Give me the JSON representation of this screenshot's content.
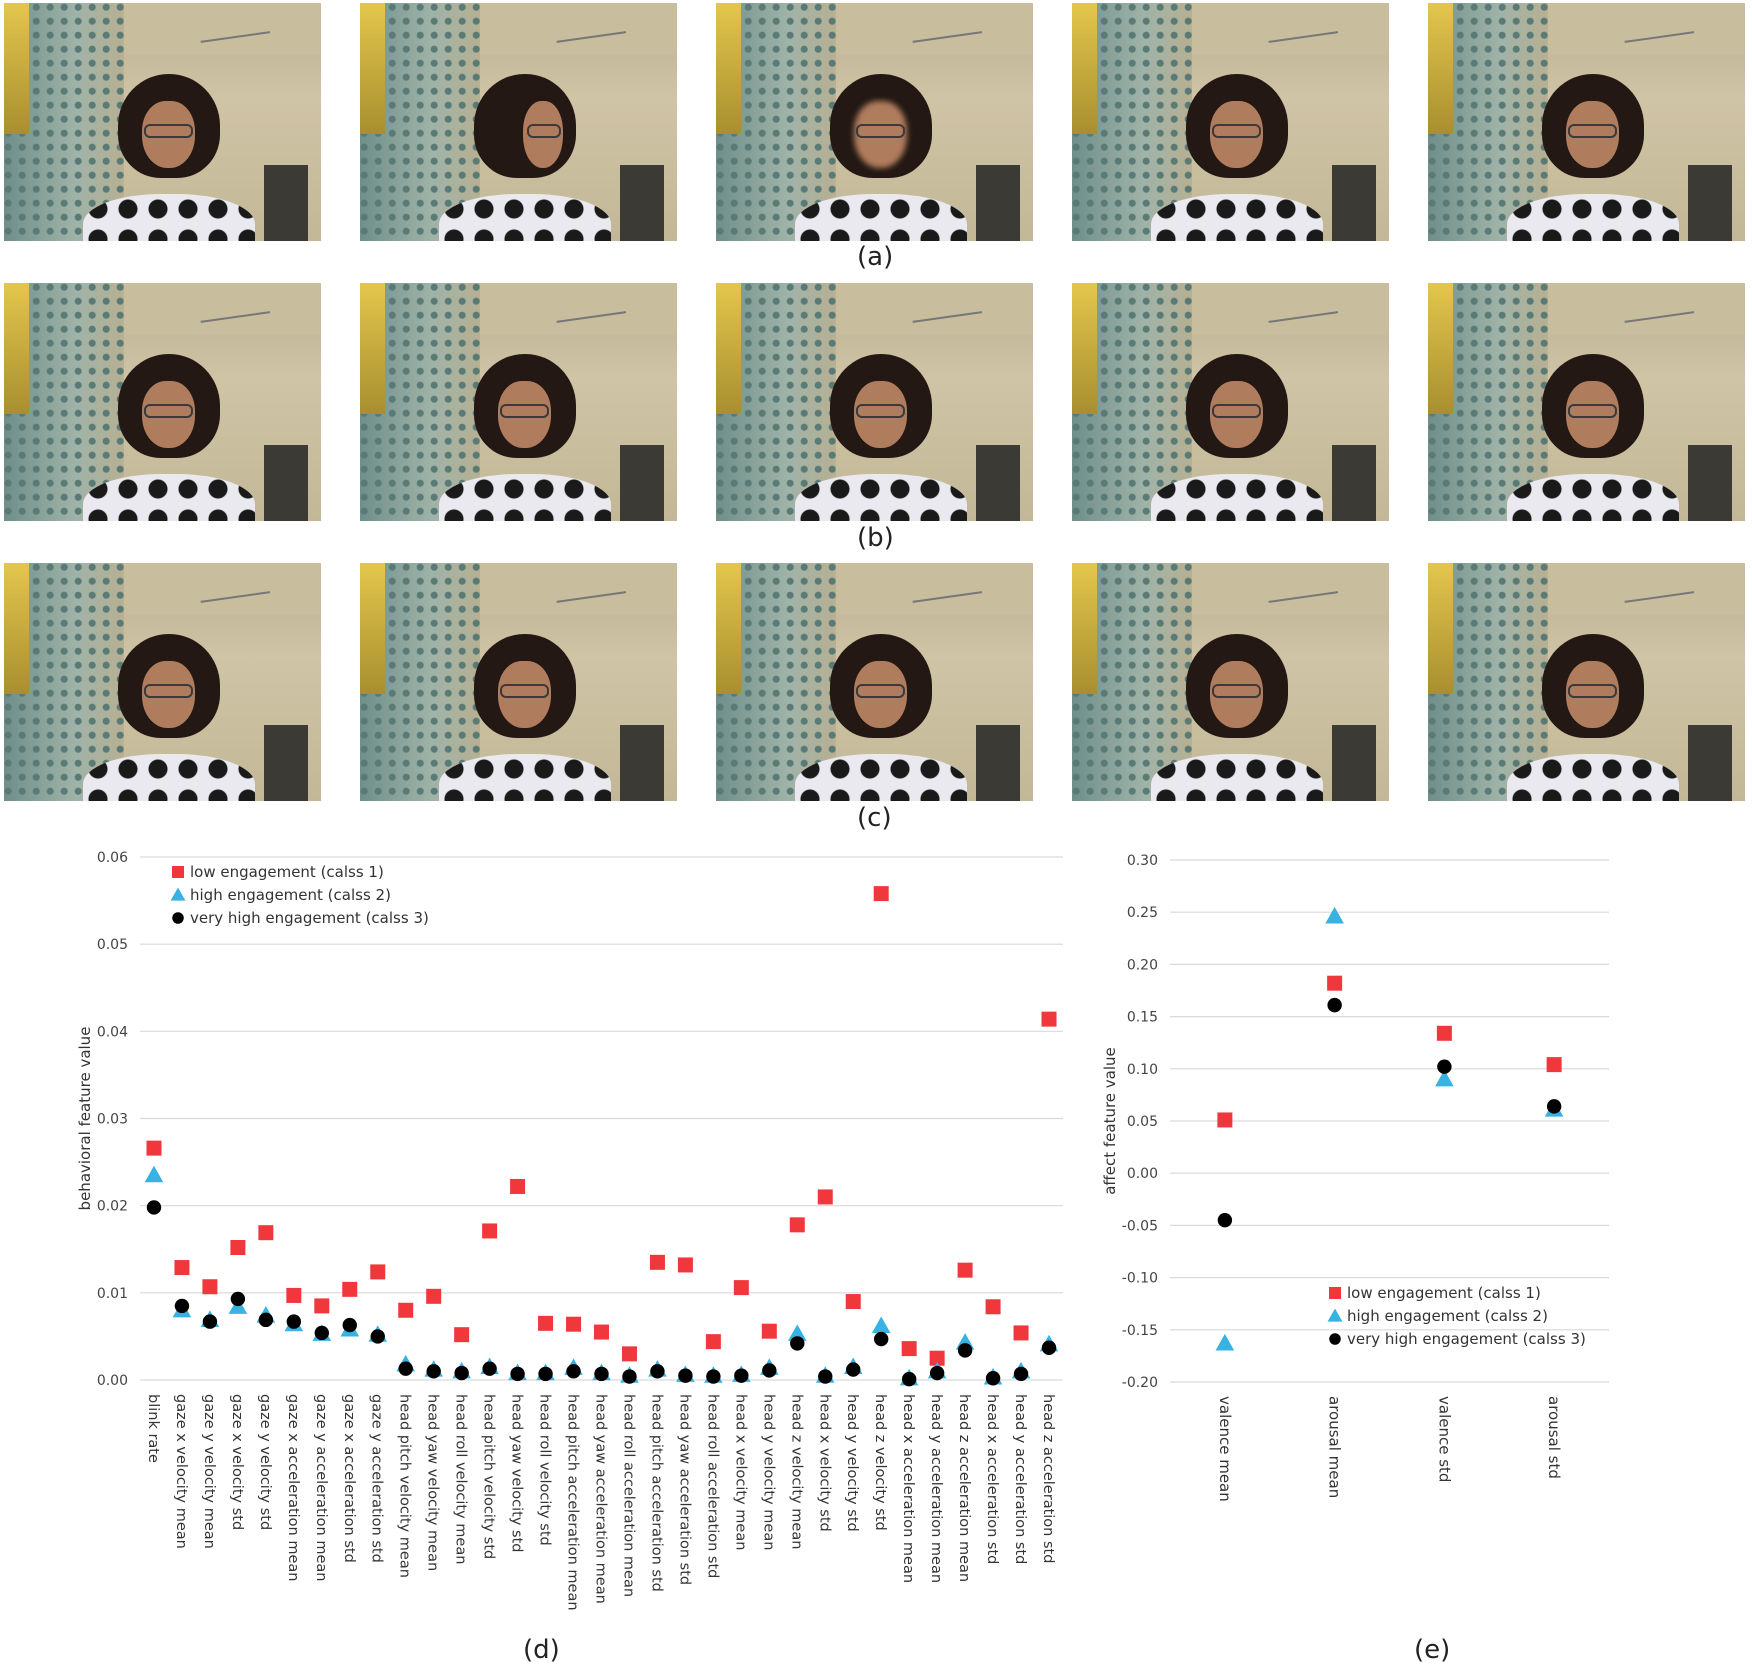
{
  "photo_rows": [
    {
      "caption": "(a)",
      "frames": [
        "frontal-gesture",
        "turned",
        "blurred",
        "frontal",
        "frontal"
      ]
    },
    {
      "caption": "(b)",
      "frames": [
        "frontal",
        "frontal",
        "frontal",
        "frontal",
        "frontal"
      ]
    },
    {
      "caption": "(c)",
      "frames": [
        "frontal",
        "frontal",
        "frontal",
        "frontal",
        "frontal"
      ]
    }
  ],
  "colors": {
    "class1": "#f0383c",
    "class2": "#38b2e2",
    "class3": "#000000",
    "grid": "#d9d9d9",
    "axis": "#444444"
  },
  "chart_data": [
    {
      "type": "scatter",
      "caption": "(d)",
      "ylabel": "behavioral feature value",
      "xlabel": "",
      "ylim": [
        0,
        0.06
      ],
      "yticks": [
        "0.00",
        "0.01",
        "0.02",
        "0.03",
        "0.04",
        "0.05",
        "0.06"
      ],
      "legend_position": "top-left",
      "grid": true,
      "categories": [
        "blink rate",
        "gaze x velocity mean",
        "gaze y velocity mean",
        "gaze x velocity std",
        "gaze y velocity std",
        "gaze x acceleration mean",
        "gaze y acceleration mean",
        "gaze x acceleration std",
        "gaze y acceleration std",
        "head pitch velocity mean",
        "head yaw velocity mean",
        "head roll velocity mean",
        "head pitch velocity std",
        "head yaw velocity std",
        "head roll velocity std",
        "head pitch acceleration mean",
        "head yaw acceleration mean",
        "head roll acceleration mean",
        "head pitch acceleration std",
        "head yaw acceleration std",
        "head roll acceleration std",
        "head x velocity mean",
        "head y velocity mean",
        "head z velocity mean",
        "head x velocity std",
        "head y velocity std",
        "head z velocity std",
        "head x acceleration mean",
        "head y acceleration mean",
        "head z acceleration mean",
        "head x acceleration std",
        "head y acceleration std",
        "head z acceleration std"
      ],
      "series": [
        {
          "name": "low engagement (calss 1)",
          "marker": "square",
          "color": "#f0383c",
          "values": [
            0.0266,
            0.0129,
            0.0107,
            0.0152,
            0.0169,
            0.0097,
            0.0085,
            0.0104,
            0.0124,
            0.008,
            0.0096,
            0.0052,
            0.0171,
            0.0222,
            0.0065,
            0.0064,
            0.0055,
            0.003,
            0.0135,
            0.0132,
            0.0044,
            0.0106,
            0.0056,
            0.0178,
            0.021,
            0.009,
            0.0558,
            0.0036,
            0.0025,
            0.0126,
            0.0084,
            0.0054,
            0.0414
          ]
        },
        {
          "name": "high engagement (calss 2)",
          "marker": "triangle",
          "color": "#38b2e2",
          "values": [
            0.0235,
            0.008,
            0.0069,
            0.0084,
            0.0074,
            0.0064,
            0.0053,
            0.0058,
            0.0052,
            0.0018,
            0.0012,
            0.001,
            0.0015,
            0.0008,
            0.0008,
            0.0014,
            0.0008,
            0.0005,
            0.0012,
            0.0006,
            0.0005,
            0.0006,
            0.0014,
            0.0053,
            0.0005,
            0.0015,
            0.0062,
            0.0002,
            0.001,
            0.0043,
            0.0003,
            0.001,
            0.0041
          ]
        },
        {
          "name": "very high engagement (calss 3)",
          "marker": "circle",
          "color": "#000000",
          "values": [
            0.0198,
            0.0085,
            0.0067,
            0.0093,
            0.0069,
            0.0067,
            0.0054,
            0.0063,
            0.005,
            0.0013,
            0.001,
            0.0008,
            0.0013,
            0.0007,
            0.0007,
            0.001,
            0.0007,
            0.0004,
            0.001,
            0.0005,
            0.0004,
            0.0005,
            0.0011,
            0.0042,
            0.0004,
            0.0012,
            0.0047,
            0.0001,
            0.0008,
            0.0034,
            0.0002,
            0.0007,
            0.0037
          ]
        }
      ]
    },
    {
      "type": "scatter",
      "caption": "(e)",
      "ylabel": "affect feature value",
      "xlabel": "",
      "ylim": [
        -0.2,
        0.3
      ],
      "yticks": [
        "-0.20",
        "-0.15",
        "-0.10",
        "-0.05",
        "0.00",
        "0.05",
        "0.10",
        "0.15",
        "0.20",
        "0.25",
        "0.30"
      ],
      "legend_position": "bottom-right",
      "grid": true,
      "categories": [
        "valence mean",
        "arousal mean",
        "valence std",
        "arousal std"
      ],
      "series": [
        {
          "name": "low engagement (calss 1)",
          "marker": "square",
          "color": "#f0383c",
          "values": [
            0.051,
            0.182,
            0.134,
            0.104
          ]
        },
        {
          "name": "high engagement (calss 2)",
          "marker": "triangle",
          "color": "#38b2e2",
          "values": [
            -0.163,
            0.246,
            0.09,
            0.061
          ]
        },
        {
          "name": "very high engagement (calss 3)",
          "marker": "circle",
          "color": "#000000",
          "values": [
            -0.045,
            0.161,
            0.102,
            0.064
          ]
        }
      ]
    }
  ]
}
